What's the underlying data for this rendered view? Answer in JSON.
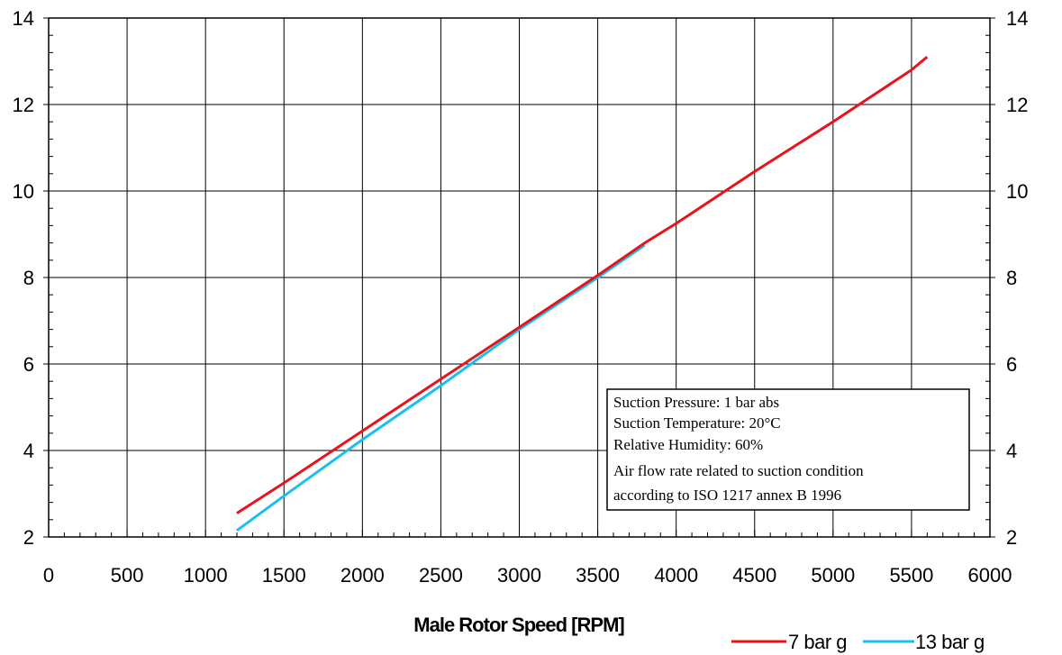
{
  "chart_data": {
    "type": "line",
    "title": "",
    "xlabel": "Male Rotor Speed [RPM]",
    "ylabel": "",
    "xlim": [
      0,
      6000
    ],
    "ylim": [
      2,
      14
    ],
    "grid": true,
    "x_ticks": [
      "0",
      "500",
      "1000",
      "1500",
      "2000",
      "2500",
      "3000",
      "3500",
      "4000",
      "4500",
      "5000",
      "5500",
      "6000"
    ],
    "y_ticks": [
      "2",
      "4",
      "6",
      "8",
      "10",
      "12",
      "14"
    ],
    "y_ticks_right": [
      "2",
      "4",
      "6",
      "8",
      "10",
      "12",
      "14"
    ],
    "legend_position": "bottom-right",
    "series": [
      {
        "name": "7 bar g",
        "color": "#e8141b",
        "x": [
          1200,
          1500,
          2000,
          2500,
          3000,
          3500,
          3800,
          4000,
          4500,
          5000,
          5500,
          5600
        ],
        "y": [
          2.55,
          3.25,
          4.45,
          5.65,
          6.85,
          8.05,
          8.8,
          9.25,
          10.45,
          11.6,
          12.8,
          13.1
        ]
      },
      {
        "name": "13 bar g",
        "color": "#18c0ef",
        "x": [
          1200,
          1500,
          2000,
          2500,
          3000,
          3500,
          3800
        ],
        "y": [
          2.15,
          2.95,
          4.25,
          5.5,
          6.8,
          8.0,
          8.75
        ]
      }
    ],
    "annotation": {
      "lines": [
        "Suction Pressure: 1 bar abs",
        "Suction Temperature:  20°C",
        "Relative Humidity: 60%",
        "Air flow rate related to suction condition",
        "according to ISO 1217 annex B 1996"
      ]
    }
  }
}
